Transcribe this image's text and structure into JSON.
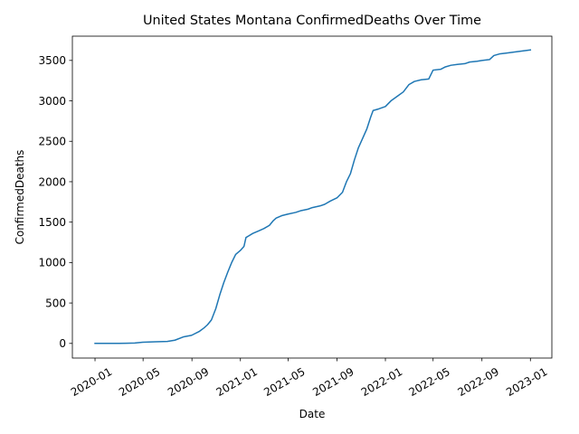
{
  "chart_data": {
    "type": "line",
    "title": "United States Montana ConfirmedDeaths Over Time",
    "xlabel": "Date",
    "ylabel": "ConfirmedDeaths",
    "x_ticks": [
      "2020-01",
      "2020-05",
      "2020-09",
      "2021-01",
      "2021-05",
      "2021-09",
      "2022-01",
      "2022-05",
      "2022-09",
      "2023-01"
    ],
    "y_ticks": [
      0,
      500,
      1000,
      1500,
      2000,
      2500,
      3000,
      3500
    ],
    "xlim": [
      "2019-11-05",
      "2023-02-24"
    ],
    "ylim": [
      -181,
      3800
    ],
    "grid": false,
    "legend": "none",
    "color": "#1f77b4",
    "series": [
      {
        "x": [
          "2020-01-01",
          "2020-03-01",
          "2020-03-20",
          "2020-04-10",
          "2020-04-30",
          "2020-06-01",
          "2020-07-01",
          "2020-07-20",
          "2020-08-10",
          "2020-08-31",
          "2020-09-20",
          "2020-10-01",
          "2020-10-10",
          "2020-10-20",
          "2020-10-31",
          "2020-11-10",
          "2020-11-20",
          "2020-11-30",
          "2020-12-10",
          "2020-12-20",
          "2021-01-01",
          "2021-01-10",
          "2021-01-15",
          "2021-01-22",
          "2021-02-01",
          "2021-02-15",
          "2021-03-01",
          "2021-03-15",
          "2021-03-25",
          "2021-04-01",
          "2021-04-15",
          "2021-05-01",
          "2021-05-20",
          "2021-06-01",
          "2021-06-20",
          "2021-07-01",
          "2021-07-20",
          "2021-08-01",
          "2021-08-15",
          "2021-09-01",
          "2021-09-15",
          "2021-09-25",
          "2021-10-05",
          "2021-10-15",
          "2021-10-25",
          "2021-11-05",
          "2021-11-15",
          "2021-11-25",
          "2021-12-01",
          "2021-12-15",
          "2022-01-01",
          "2022-01-15",
          "2022-02-01",
          "2022-02-15",
          "2022-03-01",
          "2022-03-15",
          "2022-04-01",
          "2022-04-20",
          "2022-05-01",
          "2022-05-20",
          "2022-06-01",
          "2022-06-15",
          "2022-07-01",
          "2022-07-20",
          "2022-08-01",
          "2022-08-20",
          "2022-09-01",
          "2022-09-20",
          "2022-10-01",
          "2022-10-15",
          "2022-11-01",
          "2022-12-01",
          "2023-01-01"
        ],
        "y": [
          0,
          0,
          2,
          5,
          15,
          20,
          25,
          40,
          80,
          100,
          150,
          190,
          230,
          290,
          430,
          600,
          750,
          880,
          1000,
          1100,
          1150,
          1200,
          1310,
          1330,
          1360,
          1390,
          1420,
          1460,
          1520,
          1550,
          1580,
          1600,
          1620,
          1640,
          1660,
          1680,
          1700,
          1720,
          1760,
          1800,
          1870,
          2000,
          2100,
          2270,
          2420,
          2540,
          2650,
          2800,
          2880,
          2900,
          2930,
          3000,
          3060,
          3110,
          3200,
          3240,
          3260,
          3270,
          3380,
          3390,
          3420,
          3440,
          3450,
          3460,
          3480,
          3490,
          3500,
          3510,
          3560,
          3580,
          3590,
          3610,
          3630
        ]
      }
    ]
  }
}
